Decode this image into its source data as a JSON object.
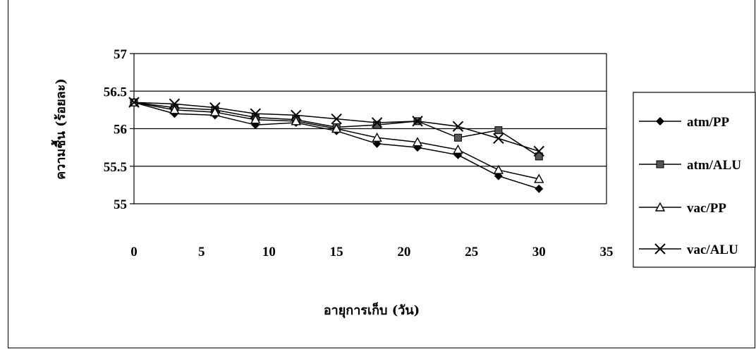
{
  "chart_data": {
    "type": "line",
    "title": "",
    "xlabel": "อายุการเก็บ (วัน)",
    "ylabel": "ความชื้น (ร้อยละ)",
    "xlim": [
      0,
      35
    ],
    "ylim": [
      55,
      57
    ],
    "x_ticks": [
      "0",
      "5",
      "10",
      "15",
      "20",
      "25",
      "30",
      "35"
    ],
    "y_ticks": [
      "55",
      "55.5",
      "56",
      "56.5",
      "57"
    ],
    "x_tick_values": [
      0,
      5,
      10,
      15,
      20,
      25,
      30,
      35
    ],
    "y_tick_values": [
      55,
      55.5,
      56,
      56.5,
      57
    ],
    "grid": "horizontal",
    "legend_position": "right",
    "x": [
      0,
      3,
      6,
      9,
      12,
      15,
      18,
      21,
      24,
      27,
      30
    ],
    "series": [
      {
        "name": "atm/PP",
        "marker": "diamond",
        "values": [
          56.35,
          56.2,
          56.18,
          56.05,
          56.08,
          55.97,
          55.8,
          55.75,
          55.65,
          55.37,
          55.2
        ]
      },
      {
        "name": "atm/ALU",
        "marker": "square",
        "values": [
          56.35,
          56.28,
          56.25,
          56.15,
          56.12,
          56.02,
          56.05,
          56.1,
          55.88,
          55.98,
          55.63
        ]
      },
      {
        "name": "vac/PP",
        "marker": "triangle",
        "values": [
          56.35,
          56.25,
          56.22,
          56.12,
          56.1,
          56.0,
          55.88,
          55.82,
          55.72,
          55.45,
          55.33
        ]
      },
      {
        "name": "vac/ALU",
        "marker": "x",
        "values": [
          56.35,
          56.33,
          56.28,
          56.2,
          56.18,
          56.13,
          56.08,
          56.1,
          56.03,
          55.87,
          55.7
        ]
      }
    ]
  }
}
